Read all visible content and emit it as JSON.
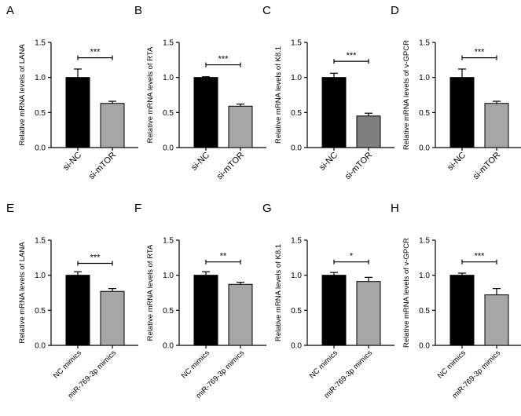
{
  "colors": {
    "black_bar": "#000000",
    "grey_bar": "#a6a6a6",
    "dark_grey_bar": "#7f7f7f",
    "axis": "#000000"
  },
  "chart_data": [
    {
      "type": "bar",
      "panel_label": "A",
      "ylabel": "Relative mRNA levels of LANA",
      "ylim": [
        0,
        1.5
      ],
      "yticks": [
        "0.0",
        "0.5",
        "1.0",
        "1.5"
      ],
      "categories": [
        "si-NC",
        "si-mTOR"
      ],
      "values": [
        1.0,
        0.63
      ],
      "errors": [
        0.12,
        0.03
      ],
      "bar_colors": [
        "#000000",
        "#a6a6a6"
      ],
      "significance": "***",
      "sig_level": 1.28
    },
    {
      "type": "bar",
      "panel_label": "B",
      "ylabel": "Relative mRNA levels of RTA",
      "ylim": [
        0,
        1.5
      ],
      "yticks": [
        "0.0",
        "0.5",
        "1.0",
        "1.5"
      ],
      "categories": [
        "si-NC",
        "si-mTOR"
      ],
      "values": [
        1.0,
        0.59
      ],
      "errors": [
        0.01,
        0.03
      ],
      "bar_colors": [
        "#000000",
        "#a6a6a6"
      ],
      "significance": "***",
      "sig_level": 1.18
    },
    {
      "type": "bar",
      "panel_label": "C",
      "ylabel": "Relative mRNA levels of K8.1",
      "ylim": [
        0,
        1.5
      ],
      "yticks": [
        "0.0",
        "0.5",
        "1.0",
        "1.5"
      ],
      "categories": [
        "si-NC",
        "si-mTOR"
      ],
      "values": [
        1.0,
        0.45
      ],
      "errors": [
        0.06,
        0.04
      ],
      "bar_colors": [
        "#000000",
        "#7f7f7f"
      ],
      "significance": "***",
      "sig_level": 1.23
    },
    {
      "type": "bar",
      "panel_label": "D",
      "ylabel": "Relative mRNA levels of v-GPCR",
      "ylim": [
        0,
        1.5
      ],
      "yticks": [
        "0.0",
        "0.5",
        "1.0",
        "1.5"
      ],
      "categories": [
        "si-NC",
        "si-mTOR"
      ],
      "values": [
        1.0,
        0.63
      ],
      "errors": [
        0.12,
        0.03
      ],
      "bar_colors": [
        "#000000",
        "#a6a6a6"
      ],
      "significance": "***",
      "sig_level": 1.28
    },
    {
      "type": "bar",
      "panel_label": "E",
      "ylabel": "Relative mRNA levels of LANA",
      "ylim": [
        0,
        1.5
      ],
      "yticks": [
        "0.0",
        "0.5",
        "1.0",
        "1.5"
      ],
      "categories": [
        "NC mimics",
        "miR-769-3p mimics"
      ],
      "values": [
        1.0,
        0.77
      ],
      "errors": [
        0.05,
        0.04
      ],
      "bar_colors": [
        "#000000",
        "#a6a6a6"
      ],
      "significance": "***",
      "sig_level": 1.17
    },
    {
      "type": "bar",
      "panel_label": "F",
      "ylabel": "Relative mRNA levels of RTA",
      "ylim": [
        0,
        1.5
      ],
      "yticks": [
        "0.0",
        "0.5",
        "1.0",
        "1.5"
      ],
      "categories": [
        "NC mimics",
        "miR-769-3p mimics"
      ],
      "values": [
        1.0,
        0.87
      ],
      "errors": [
        0.05,
        0.03
      ],
      "bar_colors": [
        "#000000",
        "#a6a6a6"
      ],
      "significance": "**",
      "sig_level": 1.19
    },
    {
      "type": "bar",
      "panel_label": "G",
      "ylabel": "Relative mRNA levels of K8.1",
      "ylim": [
        0,
        1.5
      ],
      "yticks": [
        "0.0",
        "0.5",
        "1.0",
        "1.5"
      ],
      "categories": [
        "NC mimics",
        "miR-769-3p mimics"
      ],
      "values": [
        1.0,
        0.91
      ],
      "errors": [
        0.04,
        0.06
      ],
      "bar_colors": [
        "#000000",
        "#a6a6a6"
      ],
      "significance": "*",
      "sig_level": 1.19
    },
    {
      "type": "bar",
      "panel_label": "H",
      "ylabel": "Relative mRNA levels of v-GPCR",
      "ylim": [
        0,
        1.5
      ],
      "yticks": [
        "0.0",
        "0.5",
        "1.0",
        "1.5"
      ],
      "categories": [
        "NC mimics",
        "miR-769-3p mimics"
      ],
      "values": [
        1.0,
        0.72
      ],
      "errors": [
        0.03,
        0.09
      ],
      "bar_colors": [
        "#000000",
        "#a6a6a6"
      ],
      "significance": "***",
      "sig_level": 1.19
    }
  ]
}
